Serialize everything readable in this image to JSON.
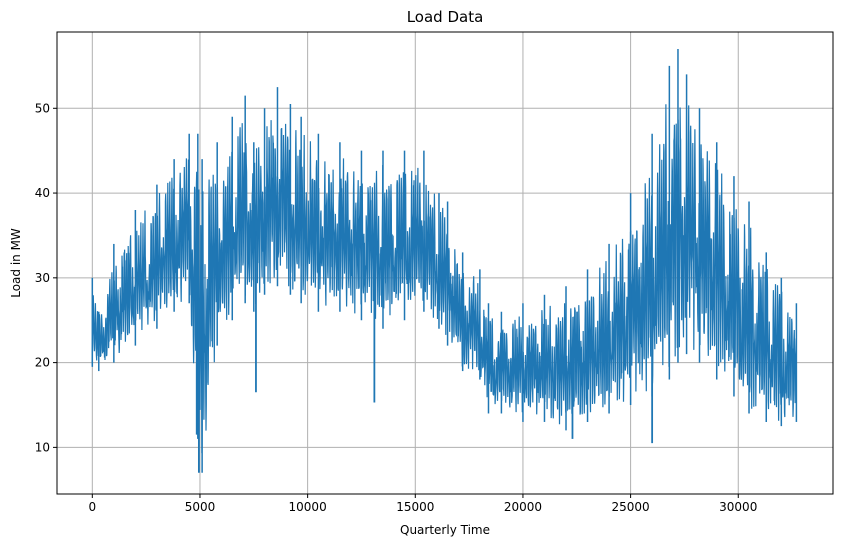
{
  "chart_data": {
    "type": "line",
    "title": "Load Data",
    "xlabel": "Quarterly Time",
    "ylabel": "Load in MW",
    "xlim": [
      -1640,
      34400
    ],
    "ylim": [
      4.5,
      59
    ],
    "grid": true,
    "x_ticks": [
      0,
      5000,
      10000,
      15000,
      20000,
      25000,
      30000
    ],
    "y_ticks": [
      10,
      20,
      30,
      40,
      50
    ],
    "series": [
      {
        "color": "#1f77b4",
        "x_start": 0,
        "x_end": 32700,
        "envelope_x": [
          0,
          300,
          1000,
          2000,
          3000,
          3800,
          4500,
          4900,
          5100,
          5800,
          6500,
          7100,
          7500,
          8000,
          8600,
          9200,
          9700,
          10500,
          11500,
          12500,
          13500,
          14500,
          15400,
          16100,
          16500,
          17200,
          18000,
          18400,
          19000,
          20000,
          21000,
          22000,
          23000,
          24000,
          25000,
          26000,
          26800,
          27200,
          27600,
          28200,
          29000,
          29800,
          30500,
          31300,
          32000,
          32700
        ],
        "envelope_min": [
          19.5,
          19,
          20,
          22,
          24,
          26,
          27,
          11,
          7,
          22,
          25,
          27,
          26,
          28,
          29,
          28,
          27,
          26,
          26,
          25,
          24,
          25,
          26,
          24,
          22,
          19,
          18,
          14,
          14,
          13,
          13,
          12,
          13,
          14,
          15,
          16,
          18,
          20,
          21,
          20,
          18,
          16,
          14,
          13,
          12.5,
          13
        ],
        "envelope_max": [
          30,
          26,
          34,
          38,
          41,
          44,
          47,
          47,
          44,
          46,
          49,
          51.5,
          46,
          50,
          52.5,
          50.5,
          49,
          47,
          46,
          45,
          45,
          45,
          45,
          40,
          39,
          33,
          31,
          27,
          26,
          27,
          28,
          29,
          31,
          34,
          40,
          47,
          55,
          57,
          54,
          50,
          46,
          42,
          39,
          33,
          30,
          27
        ],
        "spikes": [
          [
            4850,
            11.5
          ],
          [
            4950,
            7
          ],
          [
            7600,
            16.5
          ],
          [
            13100,
            15.3
          ],
          [
            22300,
            11
          ],
          [
            26000,
            10.5
          ]
        ]
      }
    ]
  }
}
